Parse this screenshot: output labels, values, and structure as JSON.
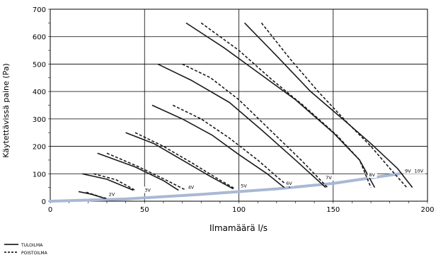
{
  "chart_data": {
    "type": "line",
    "xlabel": "Ilmamäärä l/s",
    "ylabel": "Käytettävissä paine (Pa)",
    "xlim": [
      0,
      200
    ],
    "ylim": [
      0,
      700
    ],
    "x_ticks": [
      "0",
      "50",
      "100",
      "150",
      "200"
    ],
    "y_ticks": [
      "0",
      "100",
      "200",
      "300",
      "400",
      "500",
      "600",
      "700"
    ],
    "grid": true,
    "legend_position": "bottom-left",
    "legend": [
      {
        "label": "TULOILMA",
        "style": "solid"
      },
      {
        "label": "POISTOILMA",
        "style": "dashed"
      }
    ],
    "series": [
      {
        "name": "TULOILMA",
        "voltage": "2V",
        "style": "solid",
        "points": [
          [
            15,
            35
          ],
          [
            22,
            25
          ],
          [
            29,
            10
          ]
        ]
      },
      {
        "name": "POISTOILMA",
        "voltage": "2V",
        "style": "dashed",
        "points": [
          [
            19,
            33
          ],
          [
            27,
            15
          ],
          [
            30,
            10
          ]
        ]
      },
      {
        "name": "TULOILMA",
        "voltage": "3V",
        "style": "solid",
        "points": [
          [
            17,
            100
          ],
          [
            30,
            80
          ],
          [
            44,
            40
          ]
        ]
      },
      {
        "name": "POISTOILMA",
        "voltage": "3V",
        "style": "dashed",
        "points": [
          [
            23,
            100
          ],
          [
            35,
            78
          ],
          [
            45,
            40
          ]
        ]
      },
      {
        "name": "TULOILMA",
        "voltage": "4V",
        "style": "solid",
        "points": [
          [
            25,
            175
          ],
          [
            45,
            125
          ],
          [
            60,
            75
          ],
          [
            68,
            40
          ]
        ]
      },
      {
        "name": "POISTOILMA",
        "voltage": "4V",
        "style": "dashed",
        "points": [
          [
            30,
            175
          ],
          [
            47,
            125
          ],
          [
            62,
            75
          ],
          [
            72,
            40
          ]
        ]
      },
      {
        "name": "TULOILMA",
        "voltage": "5V",
        "style": "solid",
        "points": [
          [
            40,
            250
          ],
          [
            55,
            210
          ],
          [
            70,
            150
          ],
          [
            85,
            90
          ],
          [
            97,
            45
          ]
        ]
      },
      {
        "name": "POISTOILMA",
        "voltage": "5V",
        "style": "dashed",
        "points": [
          [
            45,
            250
          ],
          [
            60,
            200
          ],
          [
            75,
            140
          ],
          [
            88,
            85
          ],
          [
            98,
            45
          ]
        ]
      },
      {
        "name": "TULOILMA",
        "voltage": "6V",
        "style": "solid",
        "points": [
          [
            54,
            350
          ],
          [
            70,
            300
          ],
          [
            86,
            240
          ],
          [
            100,
            170
          ],
          [
            115,
            100
          ],
          [
            124,
            50
          ]
        ]
      },
      {
        "name": "POISTOILMA",
        "voltage": "6V",
        "style": "dashed",
        "points": [
          [
            65,
            350
          ],
          [
            80,
            300
          ],
          [
            95,
            230
          ],
          [
            110,
            150
          ],
          [
            120,
            90
          ],
          [
            127,
            50
          ]
        ]
      },
      {
        "name": "TULOILMA",
        "voltage": "7V",
        "style": "solid",
        "points": [
          [
            57,
            500
          ],
          [
            75,
            440
          ],
          [
            95,
            360
          ],
          [
            112,
            260
          ],
          [
            130,
            150
          ],
          [
            146,
            50
          ]
        ]
      },
      {
        "name": "POISTOILMA",
        "voltage": "7V",
        "style": "dashed",
        "points": [
          [
            70,
            500
          ],
          [
            85,
            450
          ],
          [
            100,
            370
          ],
          [
            118,
            250
          ],
          [
            133,
            150
          ],
          [
            147,
            50
          ]
        ]
      },
      {
        "name": "TULOILMA",
        "voltage": "8V",
        "style": "solid",
        "points": [
          [
            72,
            650
          ],
          [
            92,
            560
          ],
          [
            112,
            460
          ],
          [
            130,
            370
          ],
          [
            150,
            250
          ],
          [
            164,
            150
          ],
          [
            172,
            50
          ]
        ]
      },
      {
        "name": "POISTOILMA",
        "voltage": "8V",
        "style": "dashed",
        "points": [
          [
            80,
            650
          ],
          [
            100,
            550
          ],
          [
            118,
            440
          ],
          [
            134,
            350
          ],
          [
            152,
            240
          ],
          [
            164,
            150
          ],
          [
            170,
            50
          ]
        ]
      },
      {
        "name": "TULOILMA",
        "voltage": "9V",
        "style": "solid",
        "points": [
          [
            103,
            650
          ],
          [
            120,
            530
          ],
          [
            138,
            400
          ],
          [
            155,
            300
          ],
          [
            170,
            210
          ],
          [
            184,
            120
          ],
          [
            192,
            50
          ]
        ]
      },
      {
        "name": "POISTOILMA",
        "voltage": "9V",
        "style": "dashed",
        "points": [
          [
            112,
            650
          ],
          [
            127,
            520
          ],
          [
            142,
            400
          ],
          [
            157,
            290
          ],
          [
            170,
            200
          ],
          [
            180,
            120
          ],
          [
            189,
            50
          ]
        ]
      }
    ],
    "annotations": [
      {
        "text": "2V",
        "x": 31,
        "y": 20
      },
      {
        "text": "3V",
        "x": 50,
        "y": 35
      },
      {
        "text": "4V",
        "x": 73,
        "y": 45
      },
      {
        "text": "5V",
        "x": 101,
        "y": 50
      },
      {
        "text": "6V",
        "x": 125,
        "y": 60
      },
      {
        "text": "7V",
        "x": 146,
        "y": 80
      },
      {
        "text": "8V",
        "x": 169,
        "y": 90
      },
      {
        "text": "9V",
        "x": 188,
        "y": 105
      },
      {
        "text": "10V",
        "x": 193,
        "y": 105
      }
    ],
    "system_curve": {
      "points": [
        [
          0,
          0
        ],
        [
          40,
          8
        ],
        [
          80,
          25
        ],
        [
          120,
          45
        ],
        [
          150,
          65
        ],
        [
          170,
          85
        ],
        [
          185,
          100
        ]
      ],
      "color": "#a9b8d4"
    }
  },
  "colors": {
    "curve": "#1a1a1a",
    "grid": "#000000",
    "system_curve": "#a9b8d4"
  }
}
